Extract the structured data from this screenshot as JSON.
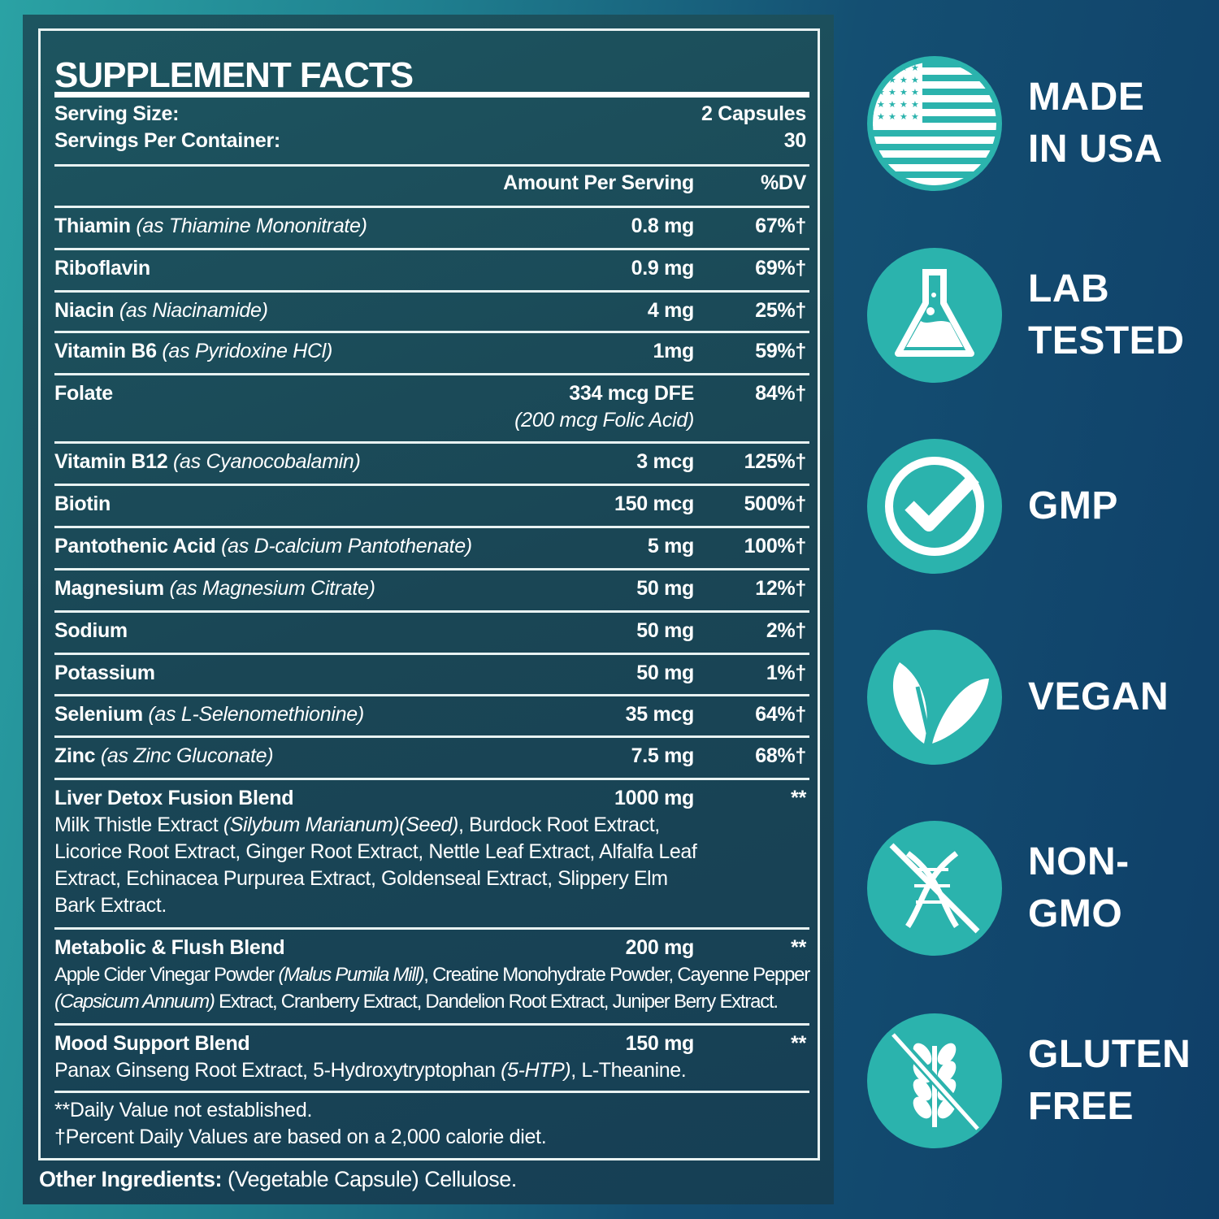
{
  "facts": {
    "title": "SUPPLEMENT FACTS",
    "serving_size_label": "Serving Size:",
    "serving_size_value": "2 Capsules",
    "servings_label": "Servings Per Container:",
    "servings_value": "30",
    "amount_header": "Amount Per Serving",
    "dv_header": "%DV",
    "rows": [
      {
        "name": "Thiamin",
        "note": "(as Thiamine Mononitrate)",
        "amount": "0.8 mg",
        "dv": "67%†"
      },
      {
        "name": "Riboflavin",
        "note": "",
        "amount": "0.9 mg",
        "dv": "69%†"
      },
      {
        "name": "Niacin",
        "note": "(as Niacinamide)",
        "amount": "4 mg",
        "dv": "25%†"
      },
      {
        "name": "Vitamin B6",
        "note": "(as Pyridoxine HCl)",
        "amount": "1mg",
        "dv": "59%†"
      },
      {
        "name": "Folate",
        "note": "",
        "amount": "334 mcg DFE",
        "amount_note": "(200 mcg Folic Acid)",
        "dv": "84%†"
      },
      {
        "name": "Vitamin B12",
        "note": "(as Cyanocobalamin)",
        "amount": "3 mcg",
        "dv": "125%†"
      },
      {
        "name": "Biotin",
        "note": "",
        "amount": "150 mcg",
        "dv": "500%†"
      },
      {
        "name": "Pantothenic Acid",
        "note": "(as D-calcium Pantothenate)",
        "amount": "5 mg",
        "dv": "100%†"
      },
      {
        "name": "Magnesium",
        "note": "(as Magnesium Citrate)",
        "amount": "50 mg",
        "dv": "12%†"
      },
      {
        "name": "Sodium",
        "note": "",
        "amount": "50 mg",
        "dv": "2%†"
      },
      {
        "name": "Potassium",
        "note": "",
        "amount": "50 mg",
        "dv": "1%†"
      },
      {
        "name": "Selenium",
        "note": "(as L-Selenomethionine)",
        "amount": "35 mcg",
        "dv": "64%†"
      },
      {
        "name": "Zinc",
        "note": "(as Zinc Gluconate)",
        "amount": "7.5 mg",
        "dv": "68%†"
      }
    ],
    "blends": [
      {
        "name": "Liver Detox Fusion Blend",
        "amount": "1000 mg",
        "dv": "**",
        "parts": [
          [
            "Milk Thistle Extract ",
            ""
          ],
          [
            "(Silybum Marianum)(Seed)",
            "i"
          ],
          [
            ", Burdock Root Extract, Licorice Root Extract, Ginger Root Extract, Nettle Leaf Extract, Alfalfa Leaf Extract, Echinacea Purpurea Extract, Goldenseal Extract, Slippery Elm Bark Extract.",
            ""
          ]
        ]
      },
      {
        "name": "Metabolic & Flush Blend",
        "amount": "200 mg",
        "dv": "**",
        "parts": [
          [
            "Apple Cider Vinegar Powder ",
            ""
          ],
          [
            "(Malus Pumila Mill)",
            "i"
          ],
          [
            ", Creatine Monohydrate Powder, Cayenne Pepper ",
            ""
          ],
          [
            "(Capsicum Annuum)",
            "i"
          ],
          [
            " Extract, Cranberry Extract, Dandelion Root Extract, Juniper Berry Extract.",
            ""
          ]
        ]
      },
      {
        "name": "Mood Support Blend",
        "amount": "150 mg",
        "dv": "**",
        "parts": [
          [
            "Panax Ginseng Root Extract, 5-Hydroxytryptophan ",
            ""
          ],
          [
            "(5-HTP)",
            "i"
          ],
          [
            ", L-Theanine.",
            ""
          ]
        ]
      }
    ],
    "footnote_1": "**Daily Value not established.",
    "footnote_2": "†Percent Daily Values are based on a 2,000 calorie diet.",
    "other_label": "Other Ingredients:",
    "other_value": " (Vegetable Capsule) Cellulose."
  },
  "badges": [
    {
      "icon": "us-flag-icon",
      "line1": "MADE",
      "line2": "IN USA"
    },
    {
      "icon": "flask-icon",
      "line1": "LAB",
      "line2": "TESTED"
    },
    {
      "icon": "check-icon",
      "line1": "GMP",
      "line2": ""
    },
    {
      "icon": "leaf-icon",
      "line1": "VEGAN",
      "line2": ""
    },
    {
      "icon": "dna-crossed-icon",
      "line1": "NON-",
      "line2": "GMO"
    },
    {
      "icon": "wheat-crossed-icon",
      "line1": "GLUTEN",
      "line2": "FREE"
    }
  ],
  "colors": {
    "badge": "#2bb3ad",
    "panel": "#1a4655",
    "background_dark": "#0f3f68"
  }
}
